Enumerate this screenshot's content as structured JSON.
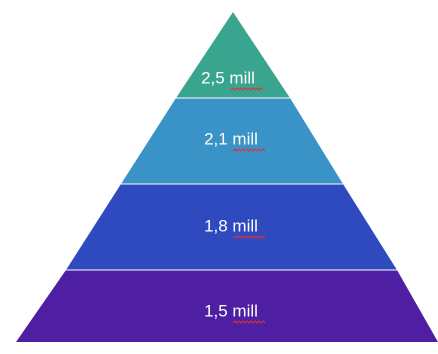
{
  "tiers": [
    {
      "label": "2,5 mill",
      "color": "#3aa58f"
    },
    {
      "label": "2,1 mill",
      "color": "#3a93c6"
    },
    {
      "label": "1,8 mill",
      "color": "#2f49bf"
    },
    {
      "label": "1,5 mill",
      "color": "#4e1ea3"
    }
  ],
  "divider_color": "#ffffff",
  "spellcheck_underline_color": "#e0303a"
}
